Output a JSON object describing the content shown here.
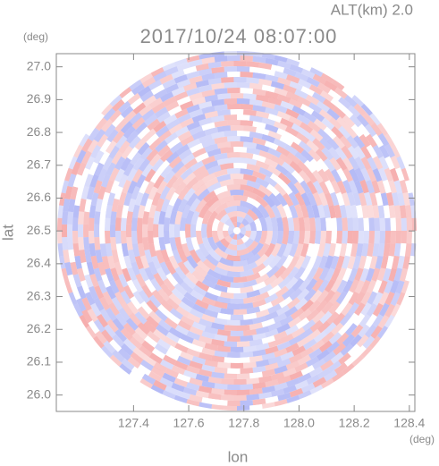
{
  "chart_data": {
    "type": "radar-ppi",
    "title": "2017/10/24 08:07:00",
    "altitude_label": "ALT(km) 2.0",
    "x_label": "lon",
    "x_unit": "(deg)",
    "y_label": "lat",
    "y_unit": "(deg)",
    "xlim": [
      127.12,
      128.42
    ],
    "xticks": [
      {
        "value": 127.4,
        "label": "127.4"
      },
      {
        "value": 127.6,
        "label": "127.6"
      },
      {
        "value": 127.8,
        "label": "127.8"
      },
      {
        "value": 128.0,
        "label": "128.0"
      },
      {
        "value": 128.2,
        "label": "128.2"
      },
      {
        "value": 128.4,
        "label": "128.4"
      }
    ],
    "ylim": [
      25.95,
      27.04
    ],
    "yticks": [
      {
        "value": 26.0,
        "label": "26.0"
      },
      {
        "value": 26.1,
        "label": "26.1"
      },
      {
        "value": 26.2,
        "label": "26.2"
      },
      {
        "value": 26.3,
        "label": "26.3"
      },
      {
        "value": 26.4,
        "label": "26.4"
      },
      {
        "value": 26.5,
        "label": "26.5"
      },
      {
        "value": 26.6,
        "label": "26.6"
      },
      {
        "value": 26.7,
        "label": "26.7"
      },
      {
        "value": 26.8,
        "label": "26.8"
      },
      {
        "value": 26.9,
        "label": "26.9"
      },
      {
        "value": 27.0,
        "label": "27.0"
      }
    ]
  }
}
